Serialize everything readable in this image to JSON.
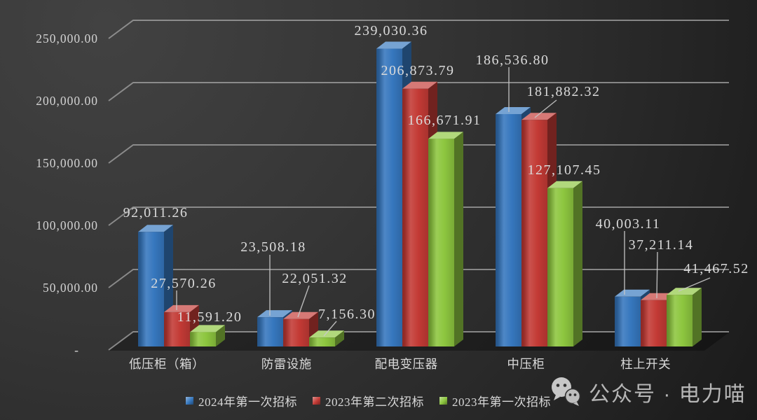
{
  "watermark": {
    "icon": "wechat-icon",
    "text": "公众号 · 电力喵"
  },
  "chart_data": {
    "type": "bar",
    "variant": "3d-clustered-column",
    "title": "",
    "xlabel": "",
    "ylabel": "",
    "categories": [
      "低压柜（箱）",
      "防雷设施",
      "配电变压器",
      "中压柜",
      "柱上开关"
    ],
    "series": [
      {
        "name": "2024年第一次招标",
        "color": "#3677BE",
        "values": [
          92011.26,
          23508.18,
          239030.36,
          186536.8,
          40003.11
        ],
        "labels": [
          "92,011.26",
          "23,508.18",
          "239,030.36",
          "186,536.80",
          "40,003.11"
        ]
      },
      {
        "name": "2023年第二次招标",
        "color": "#C33A35",
        "values": [
          27570.26,
          22051.32,
          206873.79,
          181882.32,
          37211.14
        ],
        "labels": [
          "27,570.26",
          "22,051.32",
          "206,873.79",
          "181,882.32",
          "37,211.14"
        ]
      },
      {
        "name": "2023年第一次招标",
        "color": "#8DC63F",
        "values": [
          11591.2,
          7156.3,
          166671.91,
          127107.45,
          41467.52
        ],
        "labels": [
          "11,591.20",
          "7,156.30",
          "166,671.91",
          "127,107.45",
          "41,467.52"
        ]
      }
    ],
    "yticks": {
      "values": [
        0,
        50000,
        100000,
        150000,
        200000,
        250000
      ],
      "labels": [
        "-",
        "50,000.00",
        "100,000.00",
        "150,000.00",
        "200,000.00",
        "250,000.00"
      ]
    },
    "ylim": [
      0,
      250000
    ],
    "grid": true,
    "data_labels": true,
    "legend_position": "bottom",
    "colors": {
      "background_top": "#424242",
      "background_bottom": "#1a1a1a",
      "gridline": "#a6a6a6",
      "text": "#d8d8d8",
      "watermark_text": "#b6b6b6"
    }
  }
}
